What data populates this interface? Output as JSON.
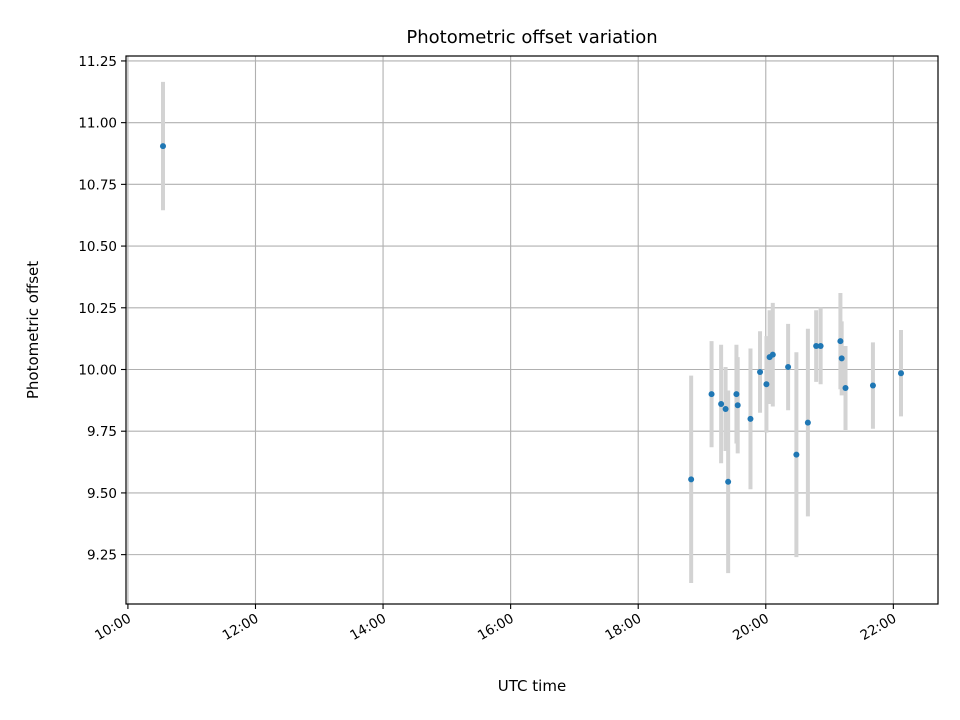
{
  "chart_data": {
    "type": "scatter",
    "title": "Photometric offset variation",
    "xlabel": "UTC time",
    "ylabel": "Photometric offset",
    "x_unit": "hours UTC",
    "xlim": [
      9.97,
      22.7
    ],
    "ylim": [
      9.05,
      11.27
    ],
    "x_ticks": [
      10,
      12,
      14,
      16,
      18,
      20,
      22
    ],
    "x_tick_labels": [
      "10:00",
      "12:00",
      "14:00",
      "16:00",
      "18:00",
      "20:00",
      "22:00"
    ],
    "y_ticks": [
      9.25,
      9.5,
      9.75,
      10.0,
      10.25,
      10.5,
      10.75,
      11.0,
      11.25
    ],
    "y_tick_labels": [
      "9.25",
      "9.50",
      "9.75",
      "10.00",
      "10.25",
      "10.50",
      "10.75",
      "11.00",
      "11.25"
    ],
    "grid": true,
    "point_color": "#1f77b4",
    "errorbar_color": "#d3d3d3",
    "points": [
      {
        "x": 10.55,
        "y": 10.905,
        "err": 0.26
      },
      {
        "x": 18.83,
        "y": 9.555,
        "err": 0.42
      },
      {
        "x": 19.15,
        "y": 9.9,
        "err": 0.215
      },
      {
        "x": 19.3,
        "y": 9.86,
        "err": 0.24
      },
      {
        "x": 19.37,
        "y": 9.84,
        "err": 0.17
      },
      {
        "x": 19.41,
        "y": 9.545,
        "err": 0.37
      },
      {
        "x": 19.54,
        "y": 9.9,
        "err": 0.2
      },
      {
        "x": 19.56,
        "y": 9.855,
        "err": 0.195
      },
      {
        "x": 19.76,
        "y": 9.8,
        "err": 0.285
      },
      {
        "x": 19.91,
        "y": 9.99,
        "err": 0.165
      },
      {
        "x": 20.01,
        "y": 9.94,
        "err": 0.195
      },
      {
        "x": 20.06,
        "y": 10.05,
        "err": 0.19
      },
      {
        "x": 20.11,
        "y": 10.06,
        "err": 0.21
      },
      {
        "x": 20.35,
        "y": 10.01,
        "err": 0.175
      },
      {
        "x": 20.48,
        "y": 9.655,
        "err": 0.415
      },
      {
        "x": 20.66,
        "y": 9.785,
        "err": 0.38
      },
      {
        "x": 20.79,
        "y": 10.095,
        "err": 0.145
      },
      {
        "x": 20.86,
        "y": 10.095,
        "err": 0.155
      },
      {
        "x": 21.17,
        "y": 10.115,
        "err": 0.195
      },
      {
        "x": 21.19,
        "y": 10.045,
        "err": 0.15
      },
      {
        "x": 21.25,
        "y": 9.925,
        "err": 0.17
      },
      {
        "x": 21.68,
        "y": 9.935,
        "err": 0.175
      },
      {
        "x": 22.12,
        "y": 9.985,
        "err": 0.175
      }
    ]
  }
}
